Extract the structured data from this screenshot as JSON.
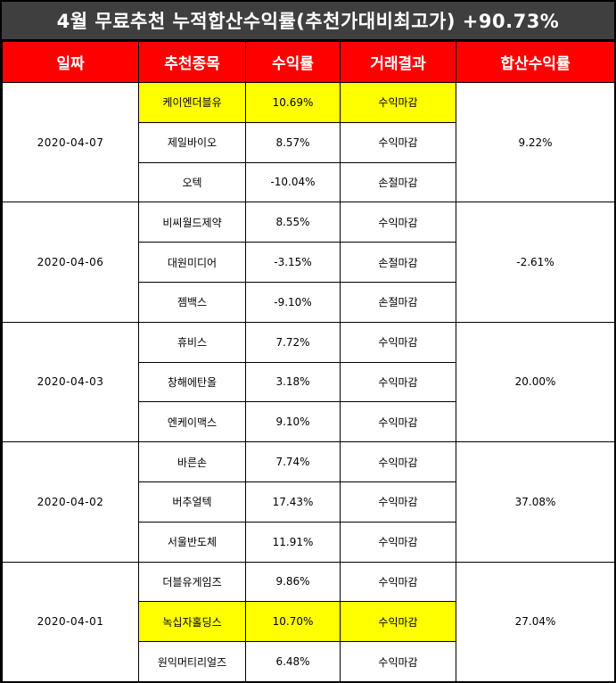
{
  "title": "4월 무료추천 누적합산수익률(추천가대비최고가) +90.73%",
  "headers": {
    "date": "일짜",
    "stock": "추천종목",
    "rate": "수익률",
    "result": "거래결과",
    "sum": "합산수익률"
  },
  "colors": {
    "header_bg": "#ff0000",
    "title_bg": "#3f3f3f",
    "positive": "#e00000",
    "negative": "#4a88c4",
    "highlight": "#ffff00"
  },
  "groups": [
    {
      "date": "2020-04-07",
      "sum": "9.22%",
      "sum_sign": "pos",
      "rows": [
        {
          "stock": "케이엔더블유",
          "rate": "10.69%",
          "sign": "pos",
          "result": "수익마감",
          "highlight": true
        },
        {
          "stock": "제일바이오",
          "rate": "8.57%",
          "sign": "pos",
          "result": "수익마감",
          "highlight": false
        },
        {
          "stock": "오텍",
          "rate": "-10.04%",
          "sign": "neg",
          "result": "손절마감",
          "highlight": false
        }
      ]
    },
    {
      "date": "2020-04-06",
      "sum": "-2.61%",
      "sum_sign": "neg",
      "rows": [
        {
          "stock": "비씨월드제약",
          "rate": "8.55%",
          "sign": "pos",
          "result": "수익마감",
          "highlight": false
        },
        {
          "stock": "대원미디어",
          "rate": "-3.15%",
          "sign": "neg",
          "result": "손절마감",
          "highlight": false
        },
        {
          "stock": "젬백스",
          "rate": "-9.10%",
          "sign": "neg",
          "result": "손절마감",
          "highlight": false
        }
      ]
    },
    {
      "date": "2020-04-03",
      "sum": "20.00%",
      "sum_sign": "pos",
      "rows": [
        {
          "stock": "휴비스",
          "rate": "7.72%",
          "sign": "pos",
          "result": "수익마감",
          "highlight": false
        },
        {
          "stock": "창해에탄올",
          "rate": "3.18%",
          "sign": "pos",
          "result": "수익마감",
          "highlight": false
        },
        {
          "stock": "엔케이맥스",
          "rate": "9.10%",
          "sign": "pos",
          "result": "수익마감",
          "highlight": false
        }
      ]
    },
    {
      "date": "2020-04-02",
      "sum": "37.08%",
      "sum_sign": "pos",
      "rows": [
        {
          "stock": "바른손",
          "rate": "7.74%",
          "sign": "pos",
          "result": "수익마감",
          "highlight": false
        },
        {
          "stock": "버추얼텍",
          "rate": "17.43%",
          "sign": "pos",
          "result": "수익마감",
          "highlight": false
        },
        {
          "stock": "서울반도체",
          "rate": "11.91%",
          "sign": "pos",
          "result": "수익마감",
          "highlight": false
        }
      ]
    },
    {
      "date": "2020-04-01",
      "sum": "27.04%",
      "sum_sign": "pos",
      "rows": [
        {
          "stock": "더블유게임즈",
          "rate": "9.86%",
          "sign": "pos",
          "result": "수익마감",
          "highlight": false
        },
        {
          "stock": "녹십자홀딩스",
          "rate": "10.70%",
          "sign": "pos",
          "result": "수익마감",
          "highlight": true
        },
        {
          "stock": "원익머티리얼즈",
          "rate": "6.48%",
          "sign": "pos",
          "result": "수익마감",
          "highlight": false
        }
      ]
    }
  ]
}
